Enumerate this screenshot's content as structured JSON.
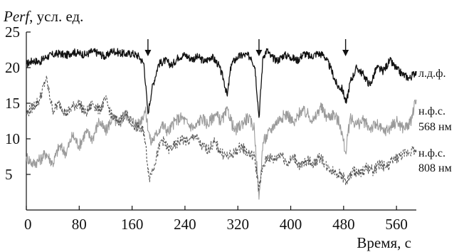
{
  "chart_data": {
    "type": "line",
    "ylabel_prefix": "Perf",
    "ylabel_suffix": ", усл. ед.",
    "xlabel": "Время, с",
    "xlim": [
      0,
      590
    ],
    "ylim": [
      0,
      25
    ],
    "xticks": [
      0,
      80,
      160,
      240,
      320,
      400,
      480,
      560
    ],
    "yticks": [
      5,
      10,
      15,
      20,
      25
    ],
    "grid": false,
    "arrows_at_x": [
      184,
      352,
      483
    ],
    "series": [
      {
        "name": "л.д.ф.",
        "label_lines": [
          "л.д.ф."
        ],
        "color": "#111111",
        "dash": "",
        "x": [
          0,
          10,
          20,
          30,
          40,
          50,
          60,
          70,
          80,
          90,
          100,
          110,
          120,
          130,
          140,
          150,
          160,
          170,
          178,
          184,
          190,
          200,
          210,
          220,
          230,
          240,
          250,
          260,
          270,
          280,
          290,
          298,
          304,
          310,
          320,
          330,
          340,
          346,
          352,
          358,
          364,
          370,
          380,
          390,
          400,
          410,
          420,
          430,
          440,
          450,
          460,
          470,
          478,
          484,
          490,
          500,
          510,
          520,
          530,
          540,
          550,
          560,
          570,
          580,
          590
        ],
        "y": [
          20.5,
          21.0,
          20.8,
          21.5,
          21.8,
          22.0,
          21.7,
          22.2,
          22.0,
          21.8,
          22.3,
          22.0,
          21.5,
          22.4,
          22.1,
          21.9,
          22.0,
          21.6,
          20.5,
          13.5,
          17.0,
          20.5,
          21.0,
          20.3,
          21.5,
          21.8,
          21.2,
          21.5,
          20.8,
          21.6,
          20.5,
          18.5,
          16.0,
          20.5,
          21.5,
          21.8,
          21.5,
          20.0,
          13.0,
          21.5,
          22.5,
          21.5,
          21.0,
          21.8,
          21.5,
          21.0,
          22.0,
          21.5,
          22.0,
          21.8,
          20.0,
          17.5,
          17.0,
          15.0,
          18.0,
          20.0,
          19.0,
          17.5,
          20.0,
          19.5,
          21.0,
          19.8,
          19.0,
          18.5,
          19.5
        ]
      },
      {
        "name": "н.ф.с. 568 нм",
        "label_lines": [
          "н.ф.с.",
          "568 нм"
        ],
        "color": "#9a9a9a",
        "dash": "",
        "x": [
          0,
          10,
          20,
          30,
          40,
          50,
          60,
          70,
          80,
          90,
          100,
          110,
          120,
          130,
          140,
          150,
          160,
          170,
          180,
          188,
          196,
          205,
          215,
          225,
          235,
          245,
          255,
          265,
          275,
          285,
          295,
          305,
          315,
          325,
          335,
          345,
          352,
          358,
          365,
          375,
          385,
          395,
          405,
          415,
          425,
          435,
          445,
          455,
          465,
          475,
          483,
          490,
          500,
          510,
          520,
          530,
          540,
          550,
          560,
          570,
          580,
          590
        ],
        "y": [
          7.5,
          6.5,
          7.0,
          8.0,
          6.5,
          9.0,
          8.0,
          10.5,
          9.0,
          11.0,
          10.0,
          12.5,
          11.0,
          13.0,
          12.0,
          13.5,
          12.5,
          12.0,
          14.0,
          9.5,
          10.5,
          12.0,
          11.0,
          12.5,
          13.0,
          12.0,
          11.5,
          13.0,
          12.0,
          13.5,
          12.5,
          14.0,
          11.0,
          12.0,
          13.0,
          11.5,
          1.5,
          9.5,
          10.5,
          12.0,
          13.0,
          13.5,
          12.0,
          14.0,
          13.5,
          12.5,
          14.5,
          13.0,
          13.5,
          12.0,
          8.0,
          13.0,
          12.0,
          12.5,
          11.5,
          12.0,
          11.0,
          11.5,
          12.5,
          11.5,
          12.0,
          15.5
        ]
      },
      {
        "name": "н.ф.с. 808 нм",
        "label_lines": [
          "н.ф.с.",
          "808 нм"
        ],
        "color": "#555555",
        "dash": "3,2",
        "x": [
          0,
          10,
          20,
          30,
          40,
          50,
          60,
          70,
          80,
          90,
          100,
          110,
          120,
          130,
          140,
          150,
          160,
          170,
          178,
          186,
          194,
          205,
          215,
          225,
          235,
          245,
          255,
          265,
          275,
          285,
          295,
          305,
          315,
          325,
          335,
          345,
          352,
          358,
          365,
          375,
          385,
          395,
          405,
          415,
          425,
          435,
          445,
          455,
          465,
          475,
          485,
          495,
          505,
          515,
          525,
          535,
          545,
          555,
          565,
          575,
          585,
          590
        ],
        "y": [
          13.5,
          14.5,
          15.5,
          18.5,
          14.0,
          15.0,
          13.5,
          14.5,
          15.0,
          13.5,
          15.0,
          14.0,
          15.5,
          13.0,
          12.5,
          13.5,
          12.0,
          11.5,
          11.0,
          4.5,
          6.5,
          10.0,
          8.5,
          9.0,
          10.0,
          9.5,
          10.5,
          9.0,
          8.5,
          9.5,
          8.0,
          7.5,
          8.0,
          9.0,
          8.0,
          7.5,
          3.0,
          6.0,
          7.5,
          7.0,
          8.0,
          6.5,
          7.5,
          6.0,
          7.0,
          6.5,
          7.5,
          6.0,
          5.5,
          5.0,
          4.0,
          5.5,
          5.0,
          6.0,
          5.5,
          6.5,
          6.0,
          7.0,
          7.5,
          8.0,
          8.5,
          8.0
        ]
      }
    ]
  }
}
